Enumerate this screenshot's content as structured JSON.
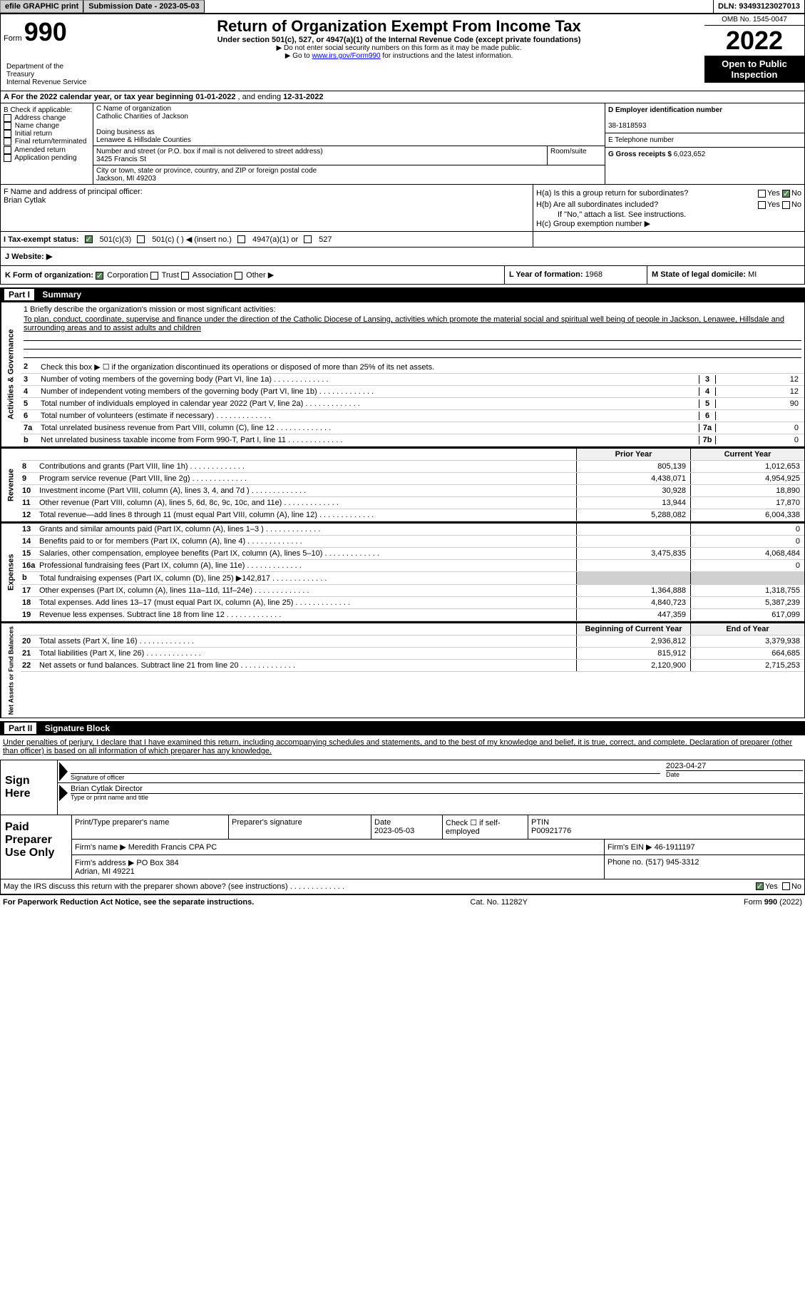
{
  "header_bar": {
    "efile": "efile GRAPHIC print",
    "submission_label": "Submission Date - 2023-05-03",
    "dln_label": "DLN: 93493123027013"
  },
  "form_header": {
    "form_word": "Form",
    "form_number": "990",
    "title": "Return of Organization Exempt From Income Tax",
    "subtitle": "Under section 501(c), 527, or 4947(a)(1) of the Internal Revenue Code (except private foundations)",
    "note1": "▶ Do not enter social security numbers on this form as it may be made public.",
    "note2_pre": "▶ Go to ",
    "note2_link": "www.irs.gov/Form990",
    "note2_post": " for instructions and the latest information.",
    "dept": "Department of the Treasury\nInternal Revenue Service",
    "omb": "OMB No. 1545-0047",
    "year": "2022",
    "open": "Open to Public Inspection"
  },
  "row_a": {
    "prefix": "A For the 2022 calendar year, or tax year beginning ",
    "begin": "01-01-2022",
    "mid": "   , and ending ",
    "end": "12-31-2022"
  },
  "col_b": {
    "header": "B Check if applicable:",
    "opts": [
      "Address change",
      "Name change",
      "Initial return",
      "Final return/terminated",
      "Amended return",
      "Application pending"
    ]
  },
  "col_c": {
    "name_label": "C Name of organization",
    "name": "Catholic Charities of Jackson",
    "dba_label": "Doing business as",
    "dba": "Lenawee & Hillsdale Counties",
    "street_label": "Number and street (or P.O. box if mail is not delivered to street address)",
    "street": "3425 Francis St",
    "room_label": "Room/suite",
    "city_label": "City or town, state or province, country, and ZIP or foreign postal code",
    "city": "Jackson, MI  49203"
  },
  "col_d": {
    "ein_label": "D Employer identification number",
    "ein": "38-1818593",
    "phone_label": "E Telephone number",
    "gross_label": "G Gross receipts $ ",
    "gross": "6,023,652"
  },
  "col_f": {
    "label": "F  Name and address of principal officer:",
    "name": "Brian Cytlak"
  },
  "col_h": {
    "ha_label": "H(a)  Is this a group return for subordinates?",
    "hb_label": "H(b)  Are all subordinates included?",
    "hb_note": "If \"No,\" attach a list. See instructions.",
    "hc_label": "H(c)  Group exemption number ▶",
    "yes": "Yes",
    "no": "No"
  },
  "tax_exempt": {
    "label": "I  Tax-exempt status:",
    "opt1": "501(c)(3)",
    "opt2_pre": "501(c) (  ) ◀ (insert no.)",
    "opt3": "4947(a)(1) or",
    "opt4": "527"
  },
  "website": {
    "label": "J  Website: ▶"
  },
  "row_k": {
    "k_label": "K Form of organization:",
    "k_opts": [
      "Corporation",
      "Trust",
      "Association",
      "Other ▶"
    ],
    "l_label": "L Year of formation: ",
    "l_val": "1968",
    "m_label": "M State of legal domicile: ",
    "m_val": "MI"
  },
  "part1": {
    "label": "Part I",
    "title": "Summary"
  },
  "mission": {
    "q": "1   Briefly describe the organization's mission or most significant activities:",
    "text": "To plan, conduct, coordinate, supervise and finance under the direction of the Catholic Diocese of Lansing, activities which promote the material social and spiritual well being of people in Jackson, Lenawee, Hillsdale and surrounding areas and to assist adults and children"
  },
  "vert_labels": {
    "activities": "Activities & Governance",
    "revenue": "Revenue",
    "expenses": "Expenses",
    "netassets": "Net Assets or Fund Balances"
  },
  "lines_gov": [
    {
      "n": "2",
      "t": "Check this box ▶ ☐  if the organization discontinued its operations or disposed of more than 25% of its net assets."
    },
    {
      "n": "3",
      "t": "Number of voting members of the governing body (Part VI, line 1a)",
      "box": "3",
      "v": "12"
    },
    {
      "n": "4",
      "t": "Number of independent voting members of the governing body (Part VI, line 1b)",
      "box": "4",
      "v": "12"
    },
    {
      "n": "5",
      "t": "Total number of individuals employed in calendar year 2022 (Part V, line 2a)",
      "box": "5",
      "v": "90"
    },
    {
      "n": "6",
      "t": "Total number of volunteers (estimate if necessary)",
      "box": "6",
      "v": ""
    },
    {
      "n": "7a",
      "t": "Total unrelated business revenue from Part VIII, column (C), line 12",
      "box": "7a",
      "v": "0"
    },
    {
      "n": "b",
      "t": "Net unrelated business taxable income from Form 990-T, Part I, line 11",
      "box": "7b",
      "v": "0"
    }
  ],
  "col_headers": {
    "prior": "Prior Year",
    "current": "Current Year",
    "begin": "Beginning of Current Year",
    "end": "End of Year"
  },
  "lines_rev": [
    {
      "n": "8",
      "t": "Contributions and grants (Part VIII, line 1h)",
      "p": "805,139",
      "c": "1,012,653"
    },
    {
      "n": "9",
      "t": "Program service revenue (Part VIII, line 2g)",
      "p": "4,438,071",
      "c": "4,954,925"
    },
    {
      "n": "10",
      "t": "Investment income (Part VIII, column (A), lines 3, 4, and 7d )",
      "p": "30,928",
      "c": "18,890"
    },
    {
      "n": "11",
      "t": "Other revenue (Part VIII, column (A), lines 5, 6d, 8c, 9c, 10c, and 11e)",
      "p": "13,944",
      "c": "17,870"
    },
    {
      "n": "12",
      "t": "Total revenue—add lines 8 through 11 (must equal Part VIII, column (A), line 12)",
      "p": "5,288,082",
      "c": "6,004,338"
    }
  ],
  "lines_exp": [
    {
      "n": "13",
      "t": "Grants and similar amounts paid (Part IX, column (A), lines 1–3 )",
      "p": "",
      "c": "0"
    },
    {
      "n": "14",
      "t": "Benefits paid to or for members (Part IX, column (A), line 4)",
      "p": "",
      "c": "0"
    },
    {
      "n": "15",
      "t": "Salaries, other compensation, employee benefits (Part IX, column (A), lines 5–10)",
      "p": "3,475,835",
      "c": "4,068,484"
    },
    {
      "n": "16a",
      "t": "Professional fundraising fees (Part IX, column (A), line 11e)",
      "p": "",
      "c": "0"
    },
    {
      "n": "b",
      "t": "Total fundraising expenses (Part IX, column (D), line 25) ▶142,817",
      "p": "GRAY",
      "c": "GRAY"
    },
    {
      "n": "17",
      "t": "Other expenses (Part IX, column (A), lines 11a–11d, 11f–24e)",
      "p": "1,364,888",
      "c": "1,318,755"
    },
    {
      "n": "18",
      "t": "Total expenses. Add lines 13–17 (must equal Part IX, column (A), line 25)",
      "p": "4,840,723",
      "c": "5,387,239"
    },
    {
      "n": "19",
      "t": "Revenue less expenses. Subtract line 18 from line 12",
      "p": "447,359",
      "c": "617,099"
    }
  ],
  "lines_net": [
    {
      "n": "20",
      "t": "Total assets (Part X, line 16)",
      "p": "2,936,812",
      "c": "3,379,938"
    },
    {
      "n": "21",
      "t": "Total liabilities (Part X, line 26)",
      "p": "815,912",
      "c": "664,685"
    },
    {
      "n": "22",
      "t": "Net assets or fund balances. Subtract line 21 from line 20",
      "p": "2,120,900",
      "c": "2,715,253"
    }
  ],
  "part2": {
    "label": "Part II",
    "title": "Signature Block"
  },
  "sig_declare": "Under penalties of perjury, I declare that I have examined this return, including accompanying schedules and statements, and to the best of my knowledge and belief, it is true, correct, and complete. Declaration of preparer (other than officer) is based on all information of which preparer has any knowledge.",
  "sign_here": {
    "label": "Sign Here",
    "sig_of_officer": "Signature of officer",
    "date_label": "Date",
    "date": "2023-04-27",
    "name": "Brian Cytlak  Director",
    "name_label": "Type or print name and title"
  },
  "paid_prep": {
    "label": "Paid Preparer Use Only",
    "r1": {
      "c1": "Print/Type preparer's name",
      "c2": "Preparer's signature",
      "c3": "Date\n2023-05-03",
      "c4": "Check ☐ if self-employed",
      "c5": "PTIN\nP00921776"
    },
    "r2": {
      "label": "Firm's name    ▶ ",
      "val": "Meredith Francis CPA PC",
      "ein_label": "Firm's EIN ▶ ",
      "ein": "46-1911197"
    },
    "r3": {
      "label": "Firm's address ▶ ",
      "val": "PO Box 384\nAdrian, MI  49221",
      "phone_label": "Phone no. ",
      "phone": "(517) 945-3312"
    }
  },
  "irs_discuss": {
    "q": "May the IRS discuss this return with the preparer shown above? (see instructions)",
    "yes": "Yes",
    "no": "No"
  },
  "footer": {
    "left": "For Paperwork Reduction Act Notice, see the separate instructions.",
    "mid": "Cat. No. 11282Y",
    "right": "Form 990 (2022)"
  }
}
